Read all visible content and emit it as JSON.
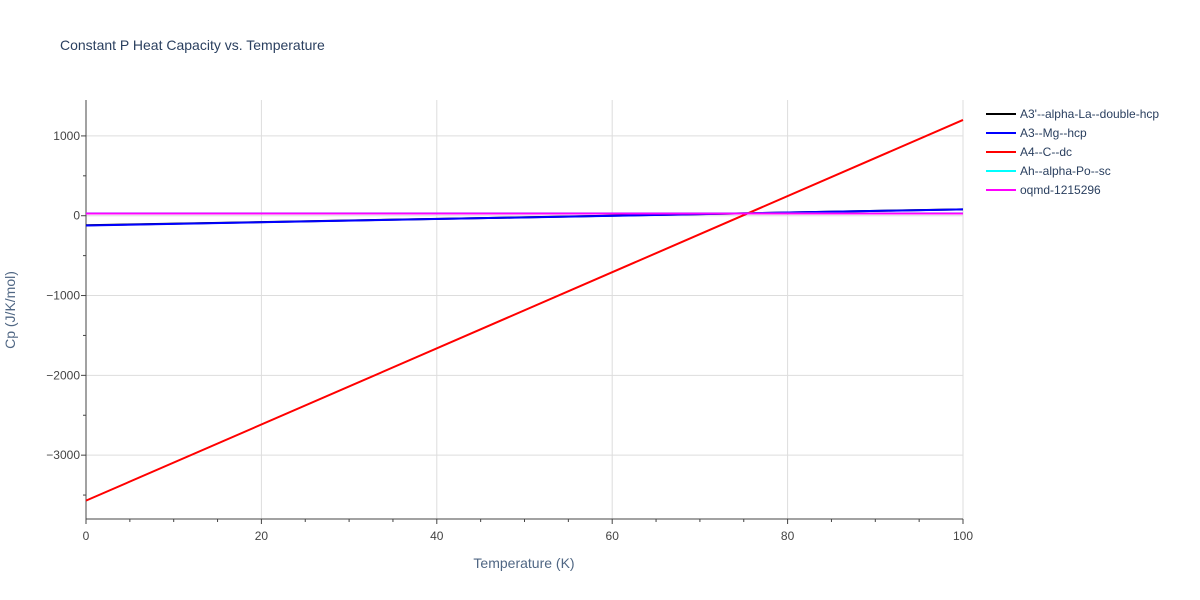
{
  "chart_data": {
    "type": "line",
    "title": "Constant P Heat Capacity vs. Temperature",
    "xlabel": "Temperature (K)",
    "ylabel": "Cp (J/K/mol)",
    "xlim": [
      0,
      100
    ],
    "ylim": [
      -3800,
      1450
    ],
    "x_ticks": [
      0,
      20,
      40,
      60,
      80,
      100
    ],
    "y_ticks": [
      -3000,
      -2000,
      -1000,
      0,
      1000
    ],
    "y_tick_labels": [
      "−3000",
      "−2000",
      "−1000",
      "0",
      "1000"
    ],
    "grid": true,
    "legend_position": "top-right",
    "series": [
      {
        "name": "A3'--alpha-La--double-hcp",
        "color": "#000000",
        "x": [
          0,
          100
        ],
        "y": [
          -120,
          80
        ]
      },
      {
        "name": "A3--Mg--hcp",
        "color": "#0000ff",
        "x": [
          0,
          100
        ],
        "y": [
          -122,
          80
        ]
      },
      {
        "name": "A4--C--dc",
        "color": "#ff0000",
        "x": [
          0,
          100
        ],
        "y": [
          -3570,
          1200
        ]
      },
      {
        "name": "Ah--alpha-Po--sc",
        "color": "#00ffff",
        "x": [
          0,
          100
        ],
        "y": [
          30,
          30
        ]
      },
      {
        "name": "oqmd-1215296",
        "color": "#ff00ff",
        "x": [
          0,
          100
        ],
        "y": [
          28,
          28
        ]
      }
    ]
  }
}
